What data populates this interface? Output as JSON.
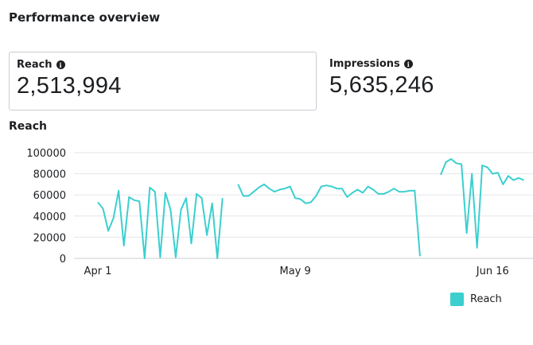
{
  "page": {
    "title": "Performance overview"
  },
  "cards": [
    {
      "label": "Reach",
      "value": "2,513,994",
      "info_icon": "info-icon",
      "selected": true
    },
    {
      "label": "Impressions",
      "value": "5,635,246",
      "info_icon": "info-icon",
      "selected": false
    }
  ],
  "chart_data": {
    "type": "line",
    "title": "Reach",
    "xlabel": "",
    "ylabel": "",
    "ylim": [
      0,
      100000
    ],
    "yticks": [
      "0",
      "20000",
      "40000",
      "60000",
      "80000",
      "100000"
    ],
    "xticks": [
      "Apr 1",
      "May 9",
      "Jun 16"
    ],
    "grid": true,
    "legend": "bottom-right",
    "series": [
      {
        "name": "Reach",
        "color": "#3ccfcf",
        "values": [
          53000,
          47000,
          26000,
          38000,
          64000,
          12000,
          58000,
          55000,
          54000,
          0,
          67000,
          63000,
          1000,
          62000,
          46000,
          1000,
          46000,
          57000,
          14000,
          61000,
          57000,
          22000,
          52000,
          0,
          57000,
          null,
          null,
          70000,
          59000,
          59000,
          63000,
          67000,
          70000,
          66000,
          63000,
          65000,
          66000,
          68000,
          57000,
          56000,
          52000,
          53000,
          59000,
          68000,
          69000,
          68000,
          66000,
          66000,
          58000,
          62000,
          65000,
          62000,
          68000,
          65000,
          61000,
          61000,
          63000,
          66000,
          63000,
          63000,
          64000,
          64000,
          2000,
          null,
          null,
          null,
          79000,
          91000,
          94000,
          90000,
          89000,
          24000,
          80000,
          10000,
          88000,
          86000,
          80000,
          81000,
          70000,
          78000,
          74000,
          76000,
          74000
        ]
      }
    ]
  },
  "legend": {
    "label": "Reach"
  }
}
